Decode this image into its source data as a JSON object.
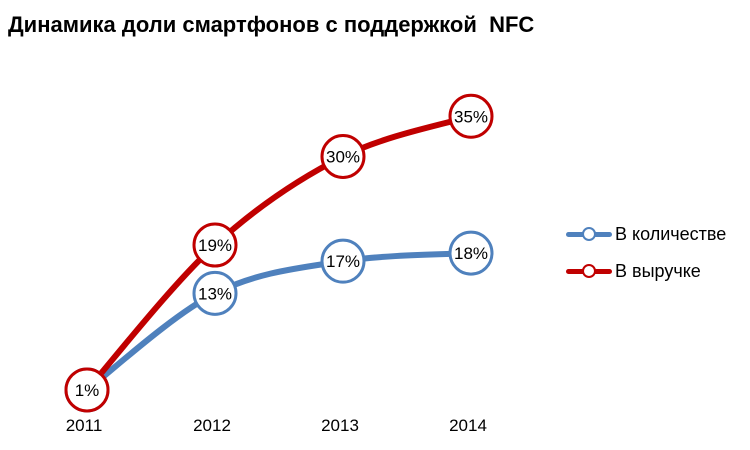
{
  "chart_data": {
    "type": "line",
    "title": "Динамика доли смартфонов с поддержкой  NFC",
    "categories": [
      "2011",
      "2012",
      "2013",
      "2014"
    ],
    "series": [
      {
        "name": "В количестве",
        "values": [
          1,
          13,
          17,
          18
        ],
        "labels": [
          "",
          "13%",
          "17%",
          "18%"
        ],
        "color": "#4f81bd"
      },
      {
        "name": "В выручке",
        "values": [
          1,
          19,
          30,
          35
        ],
        "labels": [
          "1%",
          "19%",
          "30%",
          "35%"
        ],
        "color": "#c00000"
      }
    ],
    "ylim": [
      0,
      40
    ],
    "grid": false,
    "legend_position": "right"
  }
}
